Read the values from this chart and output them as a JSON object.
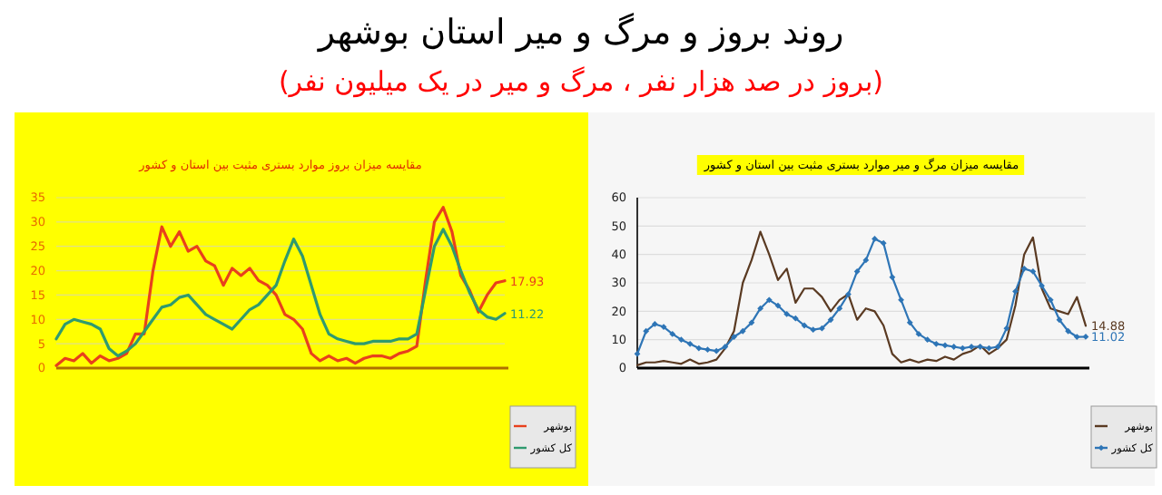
{
  "chart_data": [
    {
      "type": "line",
      "title": "مقایسه میزان بروز موارد بستری مثبت بین استان و کشور",
      "annotations": [
        "روند بروز و مرگ و میر استان بوشهر",
        "(بروز در صد هزار نفر ، مرگ و میر در یک میلیون نفر)"
      ],
      "categories": [
        null,
        null,
        null,
        null,
        null,
        null,
        null,
        null,
        null,
        null,
        null,
        null,
        null,
        null,
        null,
        null,
        null,
        null,
        null,
        null,
        null,
        null,
        null,
        null,
        null,
        null,
        null,
        null,
        null,
        null,
        null,
        null,
        null,
        null,
        null,
        null,
        null,
        null,
        null,
        null,
        null,
        null,
        null,
        null,
        null,
        null,
        null,
        null,
        null,
        null,
        null,
        null
      ],
      "series": [
        {
          "name": "بوشهر",
          "color": "#e8401c",
          "values": [
            0.5,
            2,
            1.5,
            3,
            1,
            2.5,
            1.5,
            2,
            3,
            7,
            7,
            20,
            29,
            25,
            28,
            24,
            25,
            22,
            21,
            17,
            20.5,
            19,
            20.5,
            18,
            17,
            15,
            11,
            10,
            8,
            3,
            1.5,
            2.5,
            1.5,
            2,
            1,
            2,
            2.5,
            2.5,
            2,
            3,
            3.5,
            4.5,
            18,
            30,
            33,
            28,
            19,
            16,
            11.5,
            15,
            17.5,
            17.93
          ],
          "value_labels": [
            null,
            null,
            null,
            null,
            null,
            null,
            null,
            null,
            null,
            null,
            null,
            null,
            null,
            null,
            null,
            null,
            null,
            null,
            null,
            null,
            null,
            null,
            null,
            null,
            null,
            null,
            null,
            null,
            null,
            null,
            null,
            null,
            null,
            null,
            null,
            null,
            null,
            null,
            null,
            null,
            null,
            null,
            null,
            null,
            null,
            null,
            null,
            null,
            null,
            null,
            null,
            "17.93"
          ]
        },
        {
          "name": "کل کشور",
          "color": "#2f9a6e",
          "values": [
            6,
            9,
            10,
            9.5,
            9,
            8,
            4,
            2.5,
            3.5,
            5,
            7.5,
            10,
            12.5,
            13,
            14.5,
            15,
            13,
            11,
            10,
            9,
            8,
            10,
            12,
            13,
            15,
            17,
            22,
            26.5,
            23,
            17,
            11,
            7,
            6,
            5.5,
            5,
            5,
            5.5,
            5.5,
            5.5,
            6,
            6,
            7,
            16,
            25,
            28.5,
            25,
            20,
            15.5,
            12,
            10.5,
            10,
            11.22
          ],
          "value_labels": [
            null,
            null,
            null,
            null,
            null,
            null,
            null,
            null,
            null,
            null,
            null,
            null,
            null,
            null,
            null,
            null,
            null,
            null,
            null,
            null,
            null,
            null,
            null,
            null,
            null,
            null,
            null,
            null,
            null,
            null,
            null,
            null,
            null,
            null,
            null,
            null,
            null,
            null,
            null,
            null,
            null,
            null,
            null,
            null,
            null,
            null,
            null,
            null,
            null,
            null,
            null,
            "11.22"
          ]
        }
      ],
      "ylim": [
        0,
        35
      ],
      "yticks": [
        0,
        5,
        10,
        15,
        20,
        25,
        30,
        35
      ],
      "grid": "y",
      "legend": "bottom right",
      "tick_labels": "y",
      "marker": "none"
    },
    {
      "type": "line",
      "title": "مقایسه میزان مرگ و میر موارد بستری مثبت بین استان و کشور",
      "categories": [
        null,
        null,
        null,
        null,
        null,
        null,
        null,
        null,
        null,
        null,
        null,
        null,
        null,
        null,
        null,
        null,
        null,
        null,
        null,
        null,
        null,
        null,
        null,
        null,
        null,
        null,
        null,
        null,
        null,
        null,
        null,
        null,
        null,
        null,
        null,
        null,
        null,
        null,
        null,
        null,
        null,
        null,
        null,
        null,
        null,
        null,
        null,
        null,
        null,
        null,
        null,
        null
      ],
      "series": [
        {
          "name": "بوشهر",
          "color": "#5a3a22",
          "values": [
            1,
            2,
            2,
            2.5,
            2,
            1.5,
            3,
            1.5,
            2,
            3,
            7,
            13,
            30,
            38,
            48,
            40,
            31,
            35,
            23,
            28,
            28,
            25,
            20,
            24,
            26,
            17,
            21,
            20,
            15,
            5,
            2,
            3,
            2,
            3,
            2.5,
            4,
            3,
            5,
            6,
            8,
            5,
            7,
            10,
            22,
            40,
            46,
            28,
            21,
            20,
            19,
            25,
            14.88
          ],
          "value_labels": [
            null,
            null,
            null,
            null,
            null,
            null,
            null,
            null,
            null,
            null,
            null,
            null,
            null,
            null,
            null,
            null,
            null,
            null,
            null,
            null,
            null,
            null,
            null,
            null,
            null,
            null,
            null,
            null,
            null,
            null,
            null,
            null,
            null,
            null,
            null,
            null,
            null,
            null,
            null,
            null,
            null,
            null,
            null,
            null,
            null,
            null,
            null,
            null,
            null,
            null,
            null,
            "14.88"
          ]
        },
        {
          "name": "کل کشور",
          "color": "#2e75b6",
          "marker": "diamond",
          "values": [
            5,
            13,
            15.5,
            14.5,
            12,
            10,
            8.5,
            7,
            6.5,
            6,
            7.5,
            11,
            13,
            16,
            21,
            24,
            22,
            19,
            17.5,
            15,
            13.5,
            14,
            17,
            21,
            26,
            34,
            38,
            45.5,
            44,
            32,
            24,
            16,
            12,
            10,
            8.5,
            8,
            7.5,
            7,
            7.5,
            7.5,
            7,
            7.5,
            14,
            27,
            35,
            34,
            29,
            24,
            17,
            13,
            11,
            11.02
          ],
          "value_labels": [
            null,
            null,
            null,
            null,
            null,
            null,
            null,
            null,
            null,
            null,
            null,
            null,
            null,
            null,
            null,
            null,
            null,
            null,
            null,
            null,
            null,
            null,
            null,
            null,
            null,
            null,
            null,
            null,
            null,
            null,
            null,
            null,
            null,
            null,
            null,
            null,
            null,
            null,
            null,
            null,
            null,
            null,
            null,
            null,
            null,
            null,
            null,
            null,
            null,
            null,
            null,
            "11.02"
          ]
        }
      ],
      "ylim": [
        0,
        60
      ],
      "yticks": [
        0,
        10,
        20,
        30,
        40,
        50,
        60
      ],
      "grid": "y",
      "legend": "bottom right",
      "tick_labels": "y",
      "marker": "none"
    }
  ]
}
